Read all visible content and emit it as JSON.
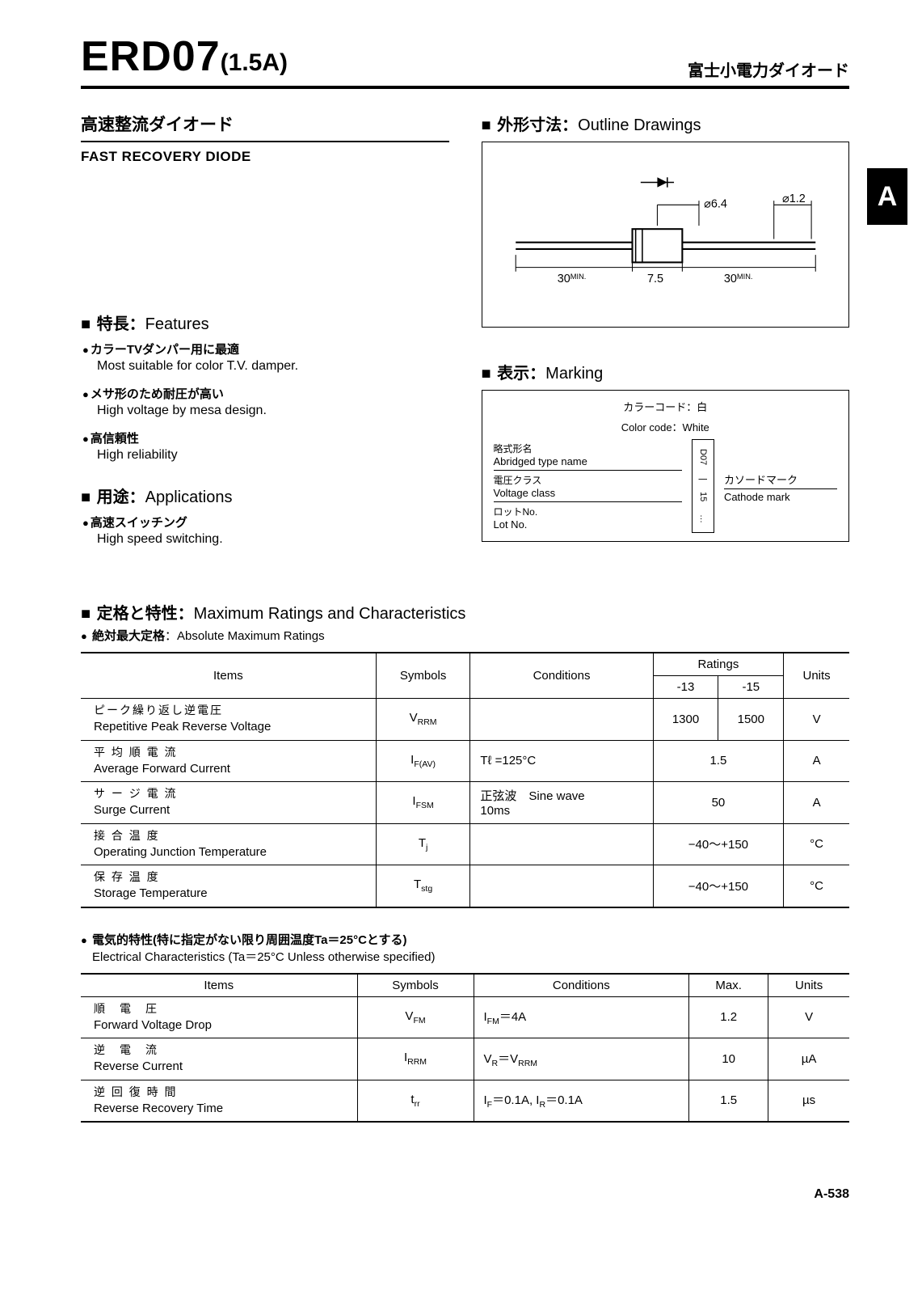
{
  "header": {
    "part_number": "ERD07",
    "part_suffix": "(1.5A)",
    "right_jp": "富士小電力ダイオード"
  },
  "subtitle": {
    "jp": "高速整流ダイオード",
    "en": "FAST RECOVERY DIODE"
  },
  "tab_letter": "A",
  "outline": {
    "head_jp": "■外形寸法：",
    "head_en": "Outline Drawings",
    "dims": {
      "body_dia": "⌀6.4",
      "lead_dia": "⌀1.2",
      "lead_len": "30",
      "lead_min": "MIN.",
      "body_len": "7.5"
    }
  },
  "features": {
    "head_jp": "特長：",
    "head_en": "Features",
    "items": [
      {
        "jp": "カラーTVダンパー用に最適",
        "en": "Most suitable for color T.V. damper."
      },
      {
        "jp": "メサ形のため耐圧が高い",
        "en": "High voltage by mesa design."
      },
      {
        "jp": "高信頼性",
        "en": "High reliability"
      }
    ]
  },
  "applications": {
    "head_jp": "用途：",
    "head_en": "Applications",
    "items": [
      {
        "jp": "高速スイッチング",
        "en": "High speed switching."
      }
    ]
  },
  "marking": {
    "head_jp": "■表示：",
    "head_en": "Marking",
    "colorcode_jp": "カラーコード：白",
    "colorcode_en": "Color code：White",
    "rows": [
      {
        "jp": "略式形名",
        "en": "Abridged type name"
      },
      {
        "jp": "電圧クラス",
        "en": "Voltage class"
      },
      {
        "jp": "ロットNo.",
        "en": "Lot No."
      }
    ],
    "center_labels": [
      "D07",
      "|",
      "15",
      "…"
    ],
    "right_jp": "カソードマーク",
    "right_en": "Cathode mark"
  },
  "ratings_section": {
    "head_jp": "定格と特性：",
    "head_en": "Maximum Ratings and Characteristics",
    "abs_jp": "絶対最大定格",
    "abs_en": "：Absolute Maximum Ratings"
  },
  "table1": {
    "headers": {
      "items": "Items",
      "symbols": "Symbols",
      "conditions": "Conditions",
      "ratings": "Ratings",
      "r13": "-13",
      "r15": "-15",
      "units": "Units"
    },
    "rows": [
      {
        "jp": "ピーク繰り返し逆電圧",
        "en": "Repetitive Peak Reverse Voltage",
        "sym": "V",
        "symSub": "RRM",
        "cond": "",
        "v13": "1300",
        "v15": "1500",
        "unit": "V",
        "span": false
      },
      {
        "jp": "平 均 順 電 流",
        "en": "Average Forward Current",
        "sym": "I",
        "symSub": "F(AV)",
        "cond": "Tℓ =125°C",
        "val": "1.5",
        "unit": "A",
        "span": true
      },
      {
        "jp": "サ ー ジ 電 流",
        "en": "Surge Current",
        "sym": "I",
        "symSub": "FSM",
        "cond": "正弦波　Sine wave\n10ms",
        "val": "50",
        "unit": "A",
        "span": true
      },
      {
        "jp": "接 合 温 度",
        "en": "Operating Junction Temperature",
        "sym": "T",
        "symSub": "j",
        "cond": "",
        "val": "−40～+150",
        "unit": "°C",
        "span": true
      },
      {
        "jp": "保 存 温 度",
        "en": "Storage Temperature",
        "sym": "T",
        "symSub": "stg",
        "cond": "",
        "val": "−40～+150",
        "unit": "°C",
        "span": true
      }
    ]
  },
  "elec_section": {
    "jp": "電気的特性(特に指定がない限り周囲温度Ta＝25°Cとする)",
    "en": "Electrical Characteristics (Ta＝25°C Unless otherwise specified)"
  },
  "table2": {
    "headers": {
      "items": "Items",
      "symbols": "Symbols",
      "conditions": "Conditions",
      "max": "Max.",
      "units": "Units"
    },
    "rows": [
      {
        "jp": "順　電　圧",
        "en": "Forward Voltage Drop",
        "sym": "V",
        "symSub": "FM",
        "cond": "I",
        "condSub": "FM",
        "condRest": "＝4A",
        "max": "1.2",
        "unit": "V"
      },
      {
        "jp": "逆　電　流",
        "en": "Reverse Current",
        "sym": "I",
        "symSub": "RRM",
        "cond": "V",
        "condSub": "R",
        "condRest": "＝V",
        "condSub2": "RRM",
        "max": "10",
        "unit": "µA"
      },
      {
        "jp": "逆 回 復 時 間",
        "en": "Reverse Recovery Time",
        "sym": "t",
        "symSub": "rr",
        "cond": "I",
        "condSub": "F",
        "condRest": "＝0.1A, I",
        "condSub2": "R",
        "condRest2": "＝0.1A",
        "max": "1.5",
        "unit": "µs"
      }
    ]
  },
  "page_number": "A-538"
}
